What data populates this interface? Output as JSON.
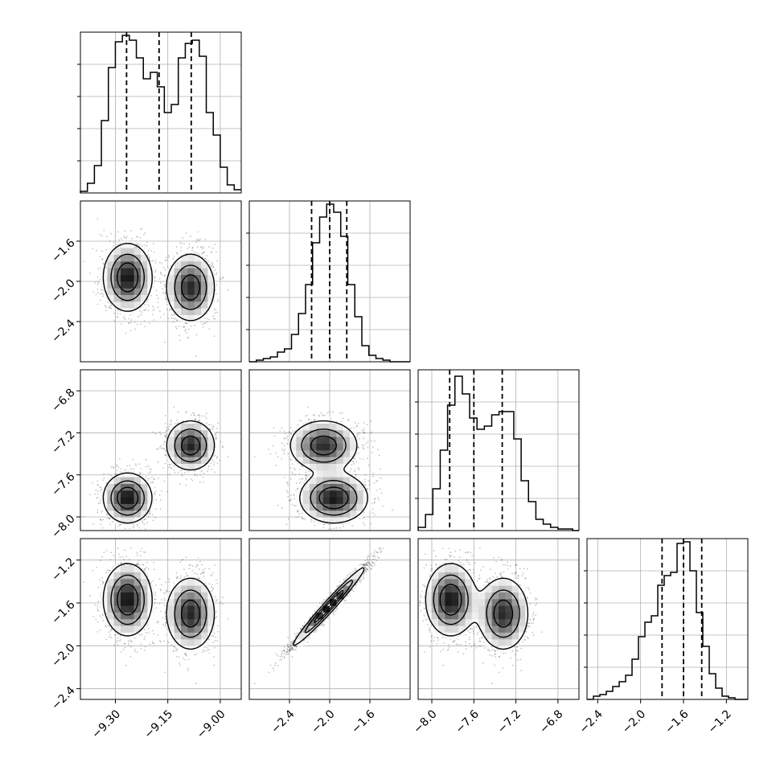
{
  "chart_data": {
    "type": "corner",
    "grid": true,
    "colors": {
      "ink": "#000000",
      "grid": "#b0b0b0",
      "background": "#ffffff"
    },
    "parameters": [
      {
        "range": [
          -9.4,
          -8.94
        ],
        "ticks": [
          -9.3,
          -9.15,
          -9.0
        ],
        "tick_labels": [
          "−9.30",
          "−9.15",
          "−9.00"
        ],
        "quantiles": [
          -9.268,
          -9.175,
          -9.083
        ]
      },
      {
        "range": [
          -2.8,
          -1.2
        ],
        "ticks": [
          -2.4,
          -2.0,
          -1.6
        ],
        "tick_labels": [
          "−2.4",
          "−2.0",
          "−1.6"
        ],
        "quantiles": [
          -2.18,
          -2.0,
          -1.83
        ]
      },
      {
        "range": [
          -8.13,
          -6.6
        ],
        "ticks": [
          -8.0,
          -7.6,
          -7.2,
          -6.8
        ],
        "tick_labels": [
          "−8.0",
          "−7.6",
          "−7.2",
          "−6.8"
        ],
        "quantiles": [
          -7.83,
          -7.6,
          -7.33
        ]
      },
      {
        "range": [
          -2.5,
          -1.0
        ],
        "ticks": [
          -2.4,
          -2.0,
          -1.6,
          -1.2
        ],
        "tick_labels": [
          "−2.4",
          "−2.0",
          "−1.6",
          "−1.2"
        ],
        "quantiles": [
          -1.8,
          -1.6,
          -1.43
        ]
      }
    ],
    "histograms": [
      {
        "edges": [
          -9.4,
          -9.38,
          -9.36,
          -9.34,
          -9.32,
          -9.3,
          -9.28,
          -9.26,
          -9.24,
          -9.22,
          -9.2,
          -9.18,
          -9.16,
          -9.14,
          -9.12,
          -9.1,
          -9.08,
          -9.06,
          -9.04,
          -9.02,
          -9.0,
          -8.98,
          -8.96,
          -8.94
        ],
        "counts": [
          0.01,
          0.06,
          0.17,
          0.45,
          0.78,
          0.94,
          0.98,
          0.95,
          0.84,
          0.71,
          0.75,
          0.66,
          0.5,
          0.55,
          0.84,
          0.93,
          0.95,
          0.85,
          0.5,
          0.36,
          0.16,
          0.05,
          0.02
        ]
      },
      {
        "edges": [
          -2.8,
          -2.73,
          -2.66,
          -2.59,
          -2.52,
          -2.45,
          -2.38,
          -2.31,
          -2.24,
          -2.17,
          -2.1,
          -2.03,
          -1.96,
          -1.89,
          -1.82,
          -1.75,
          -1.68,
          -1.61,
          -1.54,
          -1.47,
          -1.4,
          -1.33,
          -1.26,
          -1.2
        ],
        "counts": [
          0.0,
          0.01,
          0.02,
          0.03,
          0.06,
          0.08,
          0.17,
          0.3,
          0.48,
          0.74,
          0.9,
          0.98,
          0.93,
          0.78,
          0.48,
          0.28,
          0.1,
          0.04,
          0.02,
          0.01,
          0.0,
          0.0,
          0.0
        ]
      },
      {
        "edges": [
          -8.13,
          -8.06,
          -7.99,
          -7.92,
          -7.85,
          -7.78,
          -7.71,
          -7.64,
          -7.57,
          -7.5,
          -7.43,
          -7.36,
          -7.29,
          -7.22,
          -7.15,
          -7.08,
          -7.01,
          -6.94,
          -6.87,
          -6.8,
          -6.73,
          -6.66,
          -6.6
        ],
        "counts": [
          0.02,
          0.1,
          0.26,
          0.5,
          0.78,
          0.96,
          0.85,
          0.7,
          0.63,
          0.65,
          0.72,
          0.74,
          0.74,
          0.57,
          0.31,
          0.18,
          0.07,
          0.04,
          0.02,
          0.01,
          0.01,
          0.0
        ]
      },
      {
        "edges": [
          -2.5,
          -2.44,
          -2.38,
          -2.32,
          -2.26,
          -2.2,
          -2.14,
          -2.08,
          -2.02,
          -1.96,
          -1.9,
          -1.84,
          -1.78,
          -1.72,
          -1.66,
          -1.6,
          -1.54,
          -1.48,
          -1.42,
          -1.36,
          -1.3,
          -1.24,
          -1.18,
          -1.12,
          -1.0
        ],
        "counts": [
          0.0,
          0.02,
          0.03,
          0.05,
          0.08,
          0.11,
          0.15,
          0.25,
          0.39,
          0.48,
          0.52,
          0.71,
          0.77,
          0.79,
          0.97,
          0.98,
          0.8,
          0.54,
          0.33,
          0.16,
          0.07,
          0.02,
          0.01,
          0.0
        ]
      }
    ],
    "modes": [
      {
        "weight": 0.52,
        "mean": [
          -9.265,
          -1.96,
          -7.82,
          -1.57
        ],
        "sd": [
          0.035,
          0.17,
          0.12,
          0.17
        ]
      },
      {
        "weight": 0.48,
        "mean": [
          -9.085,
          -2.06,
          -7.32,
          -1.7
        ],
        "sd": [
          0.035,
          0.17,
          0.12,
          0.17
        ]
      }
    ],
    "pair_corr": {
      "1-3": 0.98
    }
  }
}
